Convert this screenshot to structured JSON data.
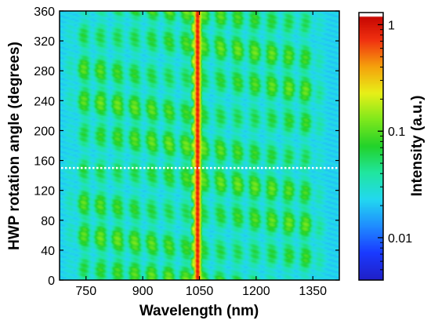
{
  "chart_data": {
    "type": "heatmap",
    "title": "",
    "xlabel": "Wavelength (nm)",
    "ylabel": "HWP rotation angle (degrees)",
    "colorbar_label": "Intensity (a.u.)",
    "xlim": [
      680,
      1420
    ],
    "ylim": [
      0,
      360
    ],
    "x_ticks": [
      750,
      900,
      1050,
      1200,
      1350
    ],
    "y_ticks": [
      0,
      40,
      80,
      120,
      160,
      200,
      240,
      280,
      320,
      360
    ],
    "color_scale": "log",
    "color_range": [
      0.004,
      1.3
    ],
    "colorbar_ticks": [
      {
        "value": 1,
        "label": "1"
      },
      {
        "value": 0.1,
        "label": "0.1"
      },
      {
        "value": 0.01,
        "label": "0.01"
      }
    ],
    "colormap": [
      "#2020c8",
      "#1a3aff",
      "#1f8cff",
      "#22d8f0",
      "#20e6a0",
      "#22d22a",
      "#7ee81c",
      "#e8f018",
      "#f5a00c",
      "#f03010",
      "#c00000"
    ],
    "annotations": [
      {
        "type": "horizontal-dashed-line",
        "angle": 150,
        "color": "#ffffff"
      }
    ],
    "peak_wavelength": 1045,
    "spectrum_range_nm": [
      720,
      1360
    ],
    "modulation_period_degrees": 45,
    "grid": false
  }
}
